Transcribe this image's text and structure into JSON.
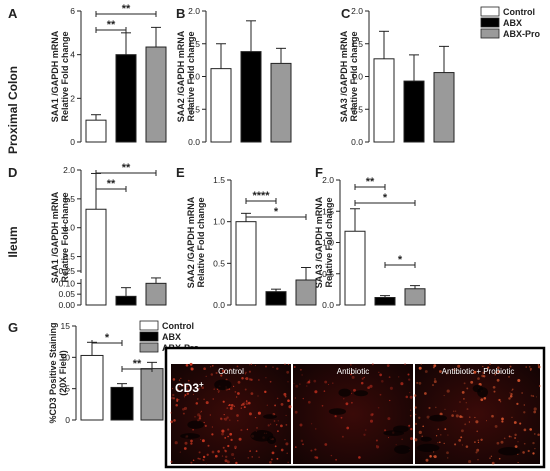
{
  "row_labels": {
    "top": "Proximal Colon",
    "middle": "Ileum"
  },
  "legend_top": [
    "Control",
    "ABX",
    "ABX-Pro"
  ],
  "legend_bottom": [
    "Control",
    "ABX",
    "ABX-Pro"
  ],
  "colors": {
    "Control": "#ffffff",
    "ABX": "#000000",
    "ABX-Pro": "#9a9a9a"
  },
  "micrographs": {
    "marker": "CD3",
    "marker_sup": "+",
    "titles": [
      "Control",
      "Antibiotic",
      "Antibiotic + Probiotic"
    ]
  },
  "chart_data": [
    {
      "panel": "A",
      "type": "bar",
      "ylabel": [
        "SAA1 /GAPDH mRNA",
        "Relative Fold change"
      ],
      "categories": [
        "Control",
        "ABX",
        "ABX-Pro"
      ],
      "values": [
        1.0,
        4.0,
        4.35
      ],
      "errors": [
        0.25,
        1.0,
        0.9
      ],
      "ylim": [
        0,
        6
      ],
      "yticks": [
        "0",
        "2",
        "4",
        "6"
      ],
      "ytick_values": [
        0,
        2,
        4,
        6
      ],
      "significance": [
        {
          "from": 0,
          "to": 1,
          "label": "**"
        },
        {
          "from": 0,
          "to": 2,
          "label": "**"
        }
      ]
    },
    {
      "panel": "B",
      "type": "bar",
      "ylabel": [
        "SAA2 /GAPDH mRNA",
        "Relative Fold change"
      ],
      "categories": [
        "Control",
        "ABX",
        "ABX-Pro"
      ],
      "values": [
        1.12,
        1.38,
        1.2
      ],
      "errors": [
        0.38,
        0.47,
        0.23
      ],
      "ylim": [
        0,
        2.0
      ],
      "yticks": [
        "0.0",
        "0.5",
        "1.0",
        "1.5",
        "2.0"
      ],
      "ytick_values": [
        0,
        0.5,
        1.0,
        1.5,
        2.0
      ],
      "significance": []
    },
    {
      "panel": "C",
      "type": "bar",
      "ylabel": [
        "SAA3 /GAPDH mRNA",
        "Relative Fold change"
      ],
      "categories": [
        "Control",
        "ABX",
        "ABX-Pro"
      ],
      "values": [
        1.27,
        0.93,
        1.06
      ],
      "errors": [
        0.42,
        0.4,
        0.4
      ],
      "ylim": [
        0,
        2.0
      ],
      "yticks": [
        "0.0",
        "0.5",
        "1.0",
        "1.5",
        "2.0"
      ],
      "ytick_values": [
        0,
        0.5,
        1.0,
        1.5,
        2.0
      ],
      "significance": []
    },
    {
      "panel": "D",
      "type": "bar",
      "ylabel": [
        "SAA1 /GAPDH mRNA",
        "Relative Fold change"
      ],
      "categories": [
        "Control",
        "ABX",
        "ABX-Pro"
      ],
      "values": [
        1.32,
        0.04,
        0.1
      ],
      "errors": [
        0.62,
        0.04,
        0.03
      ],
      "ylim": [
        0,
        2.1
      ],
      "yticks": [
        "0.00",
        "0.05",
        "0.10",
        "0.25",
        "0.5",
        "1.0",
        "1.5",
        "2.0"
      ],
      "ytick_values": [
        0.0,
        0.05,
        0.1,
        0.25,
        0.5,
        1.0,
        1.5,
        2.0
      ],
      "axis_break": true,
      "significance": [
        {
          "from": 0,
          "to": 1,
          "label": "**"
        },
        {
          "from": 0,
          "to": 2,
          "label": "**"
        }
      ]
    },
    {
      "panel": "E",
      "type": "bar",
      "ylabel": [
        "SAA2 /GAPDH mRNA",
        "Relative Fold change"
      ],
      "categories": [
        "Control",
        "ABX",
        "ABX-Pro"
      ],
      "values": [
        1.0,
        0.16,
        0.3
      ],
      "errors": [
        0.1,
        0.03,
        0.15
      ],
      "ylim": [
        0,
        1.5
      ],
      "yticks": [
        "0.0",
        "0.5",
        "1.0",
        "1.5"
      ],
      "ytick_values": [
        0,
        0.5,
        1.0,
        1.5
      ],
      "significance": [
        {
          "from": 0,
          "to": 1,
          "label": "****"
        },
        {
          "from": 0,
          "to": 2,
          "label": "*"
        }
      ]
    },
    {
      "panel": "F",
      "type": "bar",
      "ylabel": [
        "SAA3 /GAPDH mRNA",
        "Relative Fold change"
      ],
      "categories": [
        "Control",
        "ABX",
        "ABX-Pro"
      ],
      "values": [
        1.18,
        0.12,
        0.26
      ],
      "errors": [
        0.36,
        0.03,
        0.05
      ],
      "ylim": [
        0,
        2.0
      ],
      "yticks": [
        "0.0",
        "0.5",
        "1.0",
        "1.5",
        "2.0"
      ],
      "ytick_values": [
        0,
        0.5,
        1.0,
        1.5,
        2.0
      ],
      "significance": [
        {
          "from": 0,
          "to": 1,
          "label": "**"
        },
        {
          "from": 0,
          "to": 2,
          "label": "*"
        },
        {
          "from": 1,
          "to": 2,
          "label": "*"
        }
      ]
    },
    {
      "panel": "G",
      "type": "bar",
      "ylabel": [
        "%CD3 Positive Staining",
        "(20X Field)"
      ],
      "categories": [
        "Control",
        "ABX",
        "ABX-Pro"
      ],
      "values": [
        10.3,
        5.2,
        8.2
      ],
      "errors": [
        2.1,
        0.6,
        1.0
      ],
      "ylim": [
        0,
        15
      ],
      "yticks": [
        "0",
        "5",
        "10",
        "15"
      ],
      "ytick_values": [
        0,
        5,
        10,
        15
      ],
      "significance": [
        {
          "from": 0,
          "to": 1,
          "label": "*"
        },
        {
          "from": 1,
          "to": 2,
          "label": "**"
        }
      ]
    }
  ]
}
